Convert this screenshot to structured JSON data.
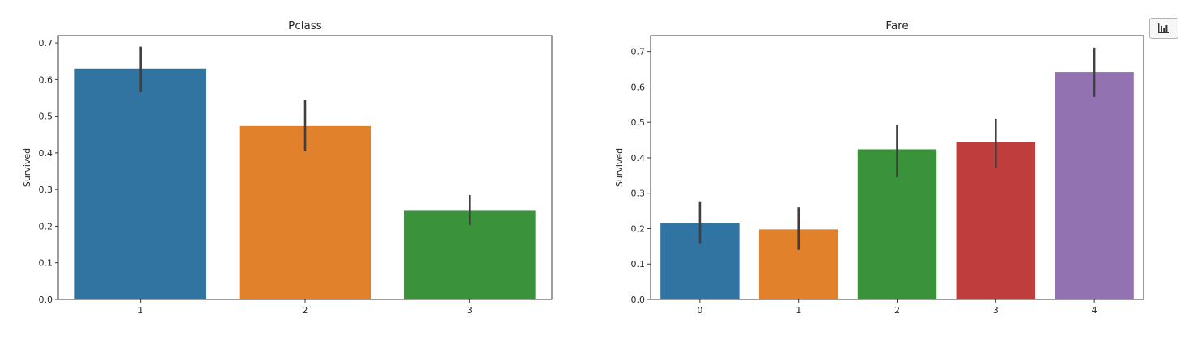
{
  "colors": {
    "bar_palette": [
      "#3274a1",
      "#e1812c",
      "#3a923a",
      "#c03d3e",
      "#9372b2"
    ],
    "error_bar": "#3f3f3f",
    "axis": "#262626"
  },
  "toolbar": {
    "icon": "bar-chart-icon"
  },
  "chart_data": [
    {
      "type": "bar",
      "title": "Pclass",
      "xlabel": "",
      "ylabel": "Survived",
      "categories": [
        "1",
        "2",
        "3"
      ],
      "values": [
        0.63,
        0.473,
        0.242
      ],
      "error_low": [
        0.565,
        0.405,
        0.203
      ],
      "error_high": [
        0.69,
        0.545,
        0.285
      ],
      "ylim": [
        0,
        0.72
      ],
      "yticks": [
        "0.0",
        "0.1",
        "0.2",
        "0.3",
        "0.4",
        "0.5",
        "0.6",
        "0.7"
      ],
      "grid": false,
      "legend": "none"
    },
    {
      "type": "bar",
      "title": "Fare",
      "xlabel": "",
      "ylabel": "Survived",
      "categories": [
        "0",
        "1",
        "2",
        "3",
        "4"
      ],
      "values": [
        0.217,
        0.198,
        0.424,
        0.444,
        0.642
      ],
      "error_low": [
        0.158,
        0.14,
        0.345,
        0.37,
        0.572
      ],
      "error_high": [
        0.275,
        0.26,
        0.493,
        0.51,
        0.711
      ],
      "ylim": [
        0,
        0.745
      ],
      "yticks": [
        "0.0",
        "0.1",
        "0.2",
        "0.3",
        "0.4",
        "0.5",
        "0.6",
        "0.7"
      ],
      "grid": false,
      "legend": "none"
    }
  ]
}
